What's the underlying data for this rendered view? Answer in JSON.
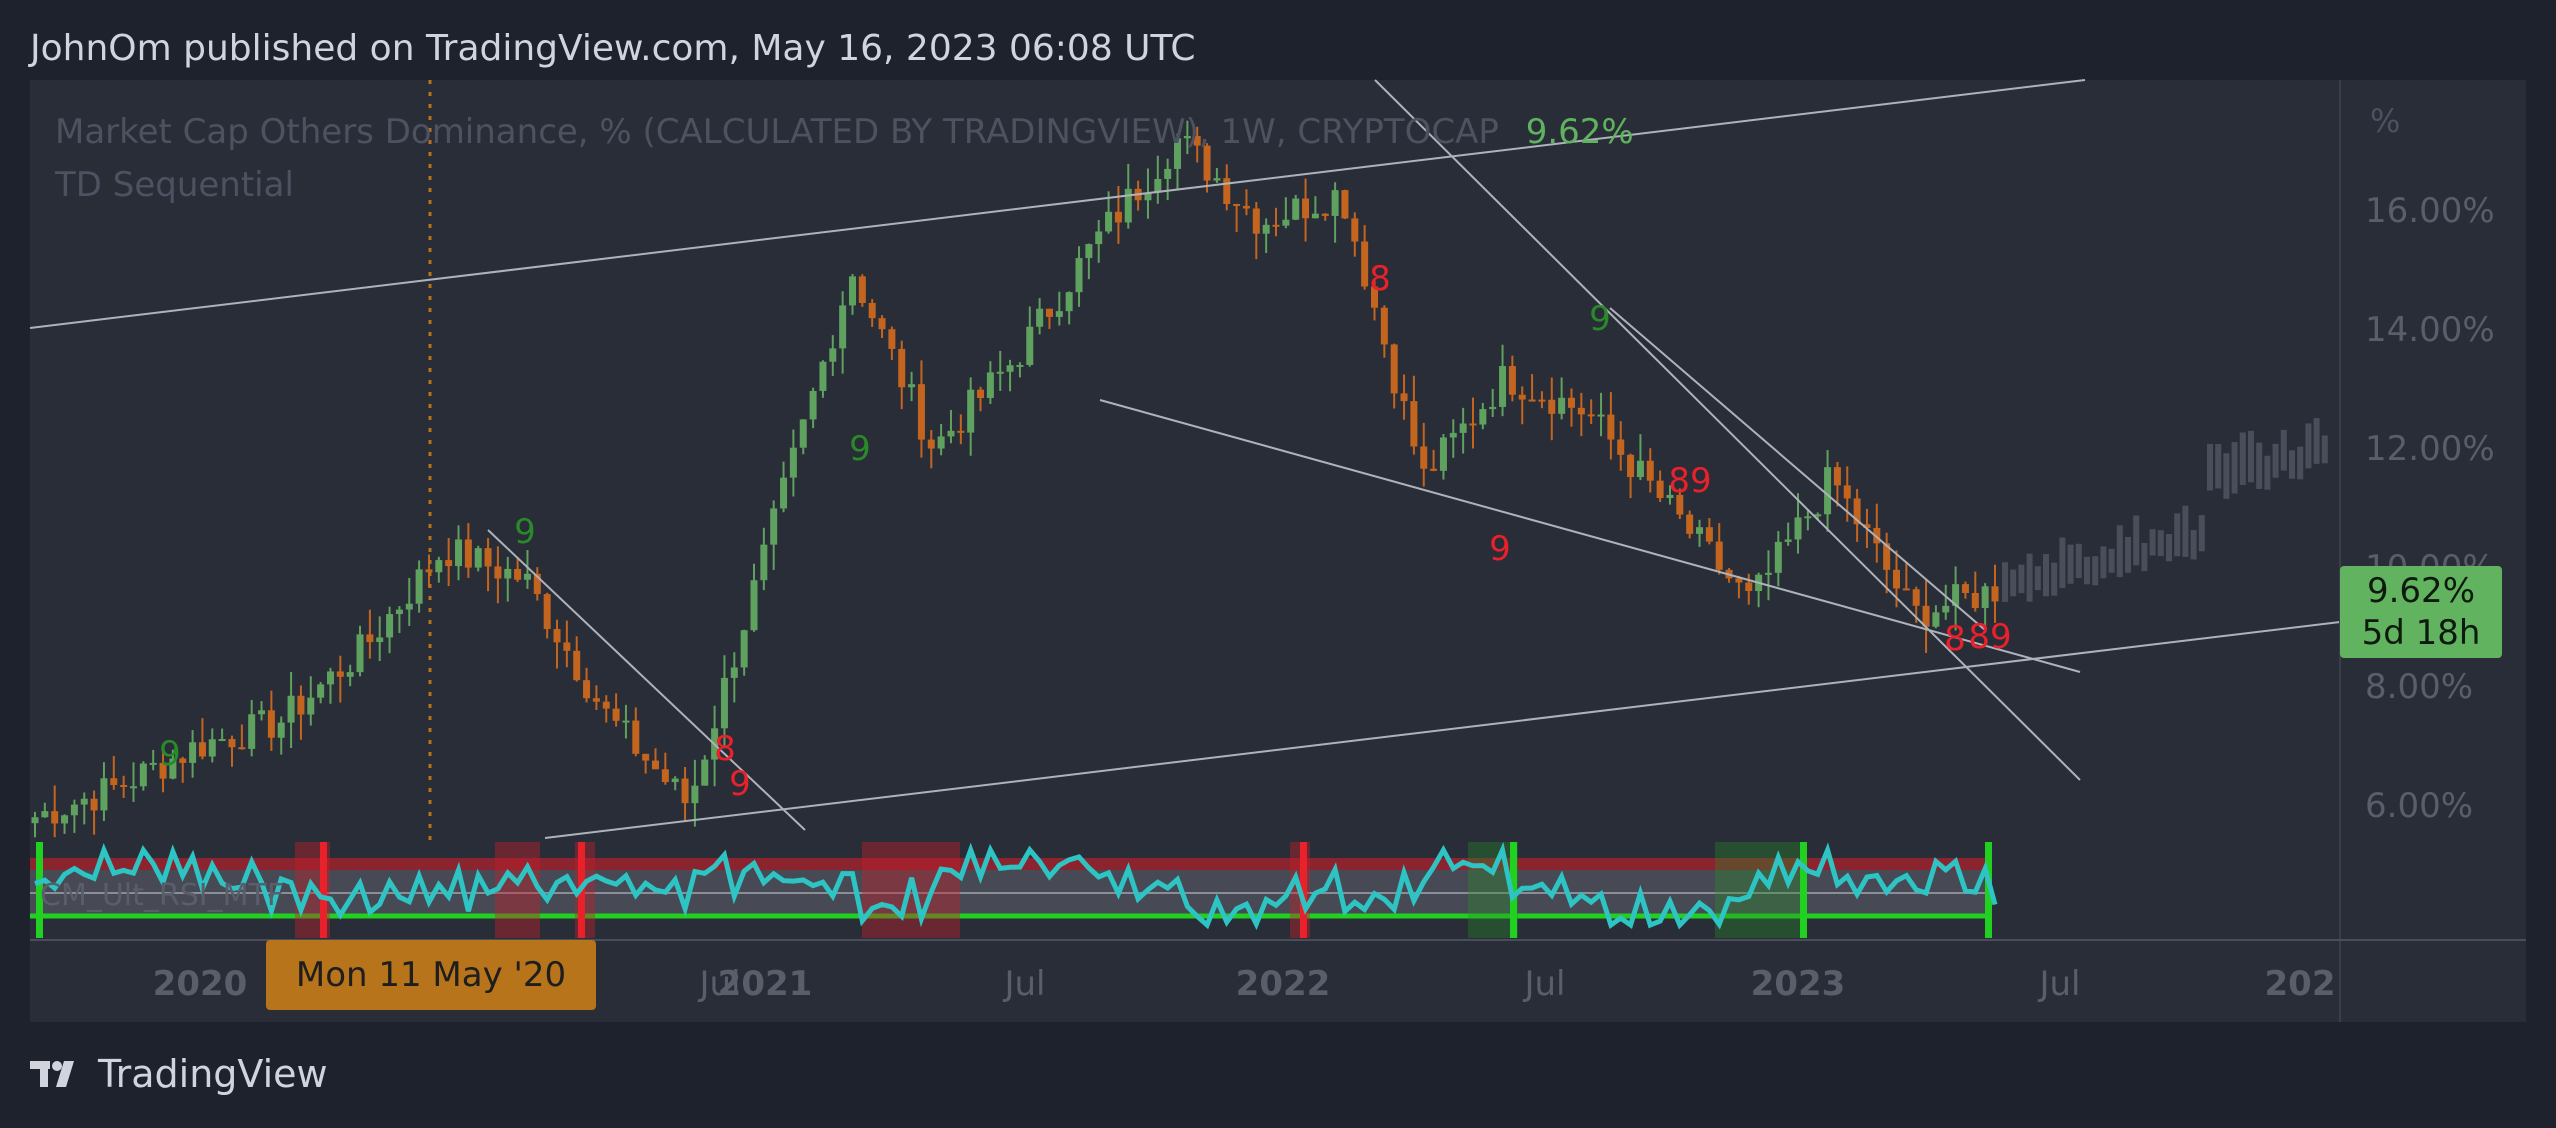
{
  "header": {
    "published": "JohnOm published on TradingView.com, May 16, 2023 06:08 UTC"
  },
  "legend": {
    "title": "Market Cap Others Dominance, % (CALCULATED BY TRADINGVIEW), 1W, CRYPTOCAP",
    "value": "9.62%",
    "indicator": "TD Sequential"
  },
  "rsi_label": "CM_Ult_RSI_MTF",
  "price_tag": {
    "value": "9.62%",
    "countdown": "5d 18h"
  },
  "date_tag": "Mon 11 May '20",
  "footer": {
    "brand": "TradingView"
  },
  "colors": {
    "up": "#5fa15f",
    "down": "#c4651f",
    "rsi": "#2ec4c4",
    "td": "#e8212a",
    "td_green": "#2a8a2a"
  },
  "chart_data": {
    "type": "candlestick",
    "title": "Market Cap Others Dominance, % (CALCULATED BY TRADINGVIEW), 1W, CRYPTOCAP",
    "y_unit": "%",
    "y_ticks": [
      "16.00%",
      "14.00%",
      "12.00%",
      "10.00%",
      "8.00%",
      "6.00%"
    ],
    "x_ticks": [
      "2020",
      "Jul",
      "2021",
      "Jul",
      "2022",
      "Jul",
      "2023",
      "Jul",
      "202"
    ],
    "ylim": [
      5,
      18
    ],
    "last_value": 9.62,
    "series": [
      {
        "name": "close",
        "x": [
          "2019-09",
          "2019-12",
          "2020-03",
          "2020-05",
          "2020-07",
          "2020-08",
          "2020-10",
          "2020-12",
          "2021-01",
          "2021-03",
          "2021-05",
          "2021-07",
          "2021-09",
          "2021-11",
          "2021-12",
          "2022-02",
          "2022-04",
          "2022-06",
          "2022-07",
          "2022-09",
          "2022-11",
          "2022-12",
          "2023-02",
          "2023-04",
          "2023-05"
        ],
        "values": [
          5.8,
          6.3,
          7.0,
          7.4,
          8.6,
          10.3,
          9.8,
          7.5,
          6.0,
          10.5,
          15.0,
          12.0,
          13.5,
          15.5,
          17.2,
          15.8,
          16.3,
          11.5,
          13.2,
          12.6,
          11.0,
          9.4,
          11.5,
          9.2,
          9.62
        ]
      }
    ],
    "td_markers": [
      {
        "label": "9",
        "color": "green"
      },
      {
        "label": "9",
        "color": "green"
      },
      {
        "label": "9",
        "color": "green"
      },
      {
        "label": "8",
        "color": "red"
      },
      {
        "label": "9",
        "color": "red"
      },
      {
        "label": "8",
        "color": "red"
      },
      {
        "label": "89",
        "color": "red"
      },
      {
        "label": "89",
        "color": "red"
      },
      {
        "label": "9",
        "color": "green"
      },
      {
        "label": "8",
        "color": "red"
      },
      {
        "label": "9",
        "color": "red"
      }
    ],
    "grid": false
  }
}
